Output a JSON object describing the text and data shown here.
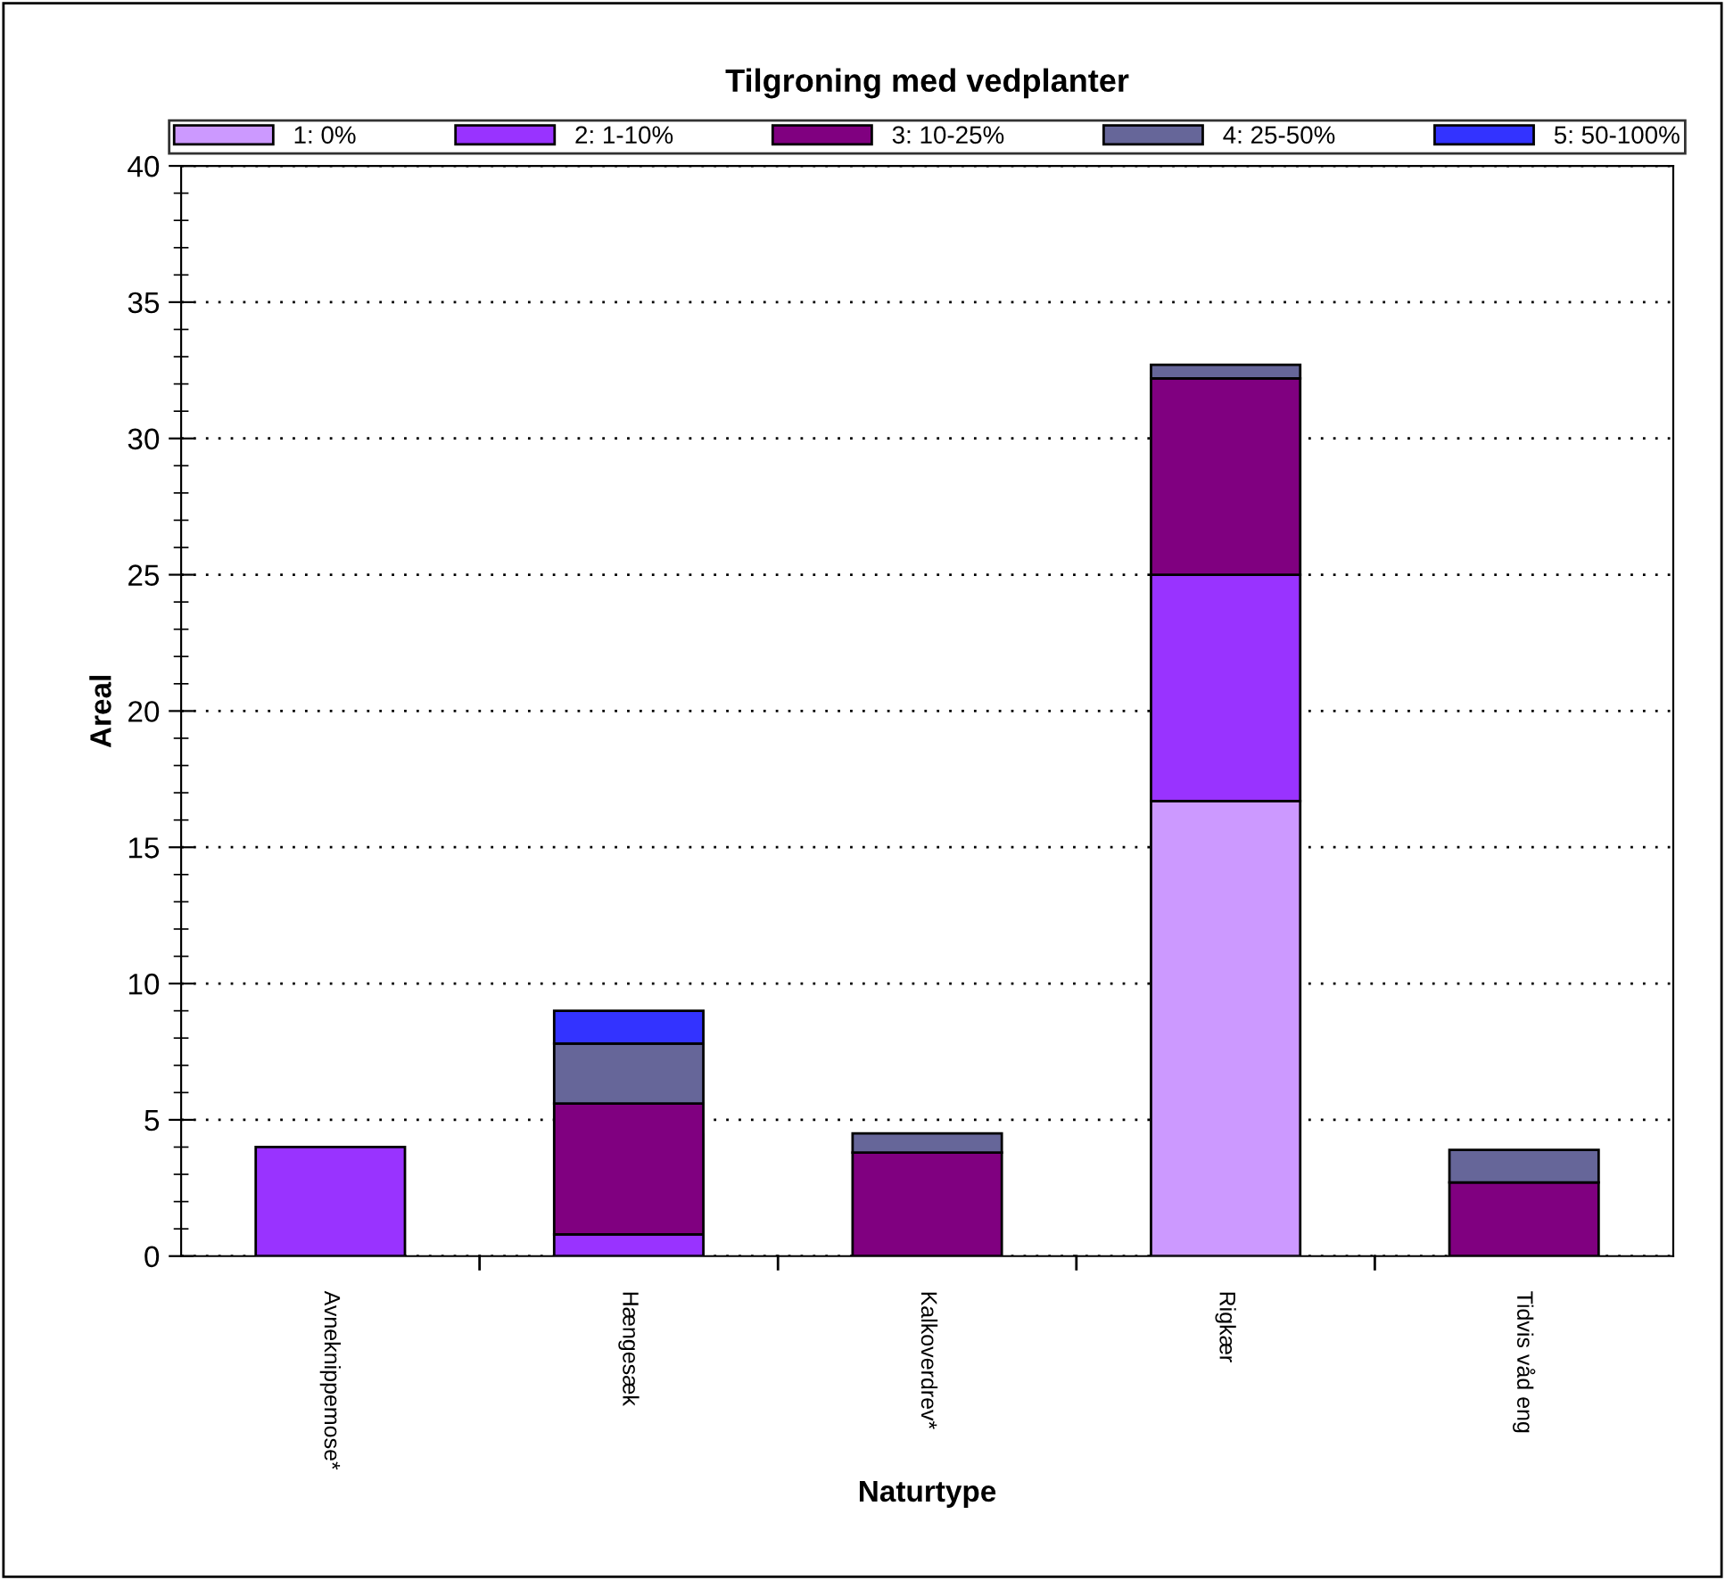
{
  "chart_data": {
    "type": "bar",
    "title": "Tilgroning med vedplanter",
    "xlabel": "Naturtype",
    "ylabel": "Areal",
    "categories": [
      "Avneknippemose*",
      "Hængesæk",
      "Kalkoverdrev*",
      "Rigkær",
      "Tidvis våd eng"
    ],
    "stacked": true,
    "series": [
      {
        "name": "1: 0%",
        "color": "#cc99ff",
        "values": [
          null,
          null,
          null,
          16.7,
          null
        ]
      },
      {
        "name": "2: 1-10%",
        "color": "#9933ff",
        "values": [
          4.0,
          0.8,
          null,
          8.3,
          null
        ]
      },
      {
        "name": "3: 10-25%",
        "color": "#800080",
        "values": [
          null,
          4.8,
          3.8,
          7.2,
          2.7
        ]
      },
      {
        "name": "4: 25-50%",
        "color": "#666699",
        "values": [
          null,
          2.2,
          0.7,
          0.5,
          1.2
        ]
      },
      {
        "name": "5: 50-100%",
        "color": "#3333ff",
        "values": [
          null,
          1.2,
          null,
          null,
          null
        ]
      }
    ],
    "ylim": [
      0,
      40
    ],
    "yticks": [
      0,
      5,
      10,
      15,
      20,
      25,
      30,
      35,
      40
    ],
    "grid": "y",
    "legend": "top"
  }
}
